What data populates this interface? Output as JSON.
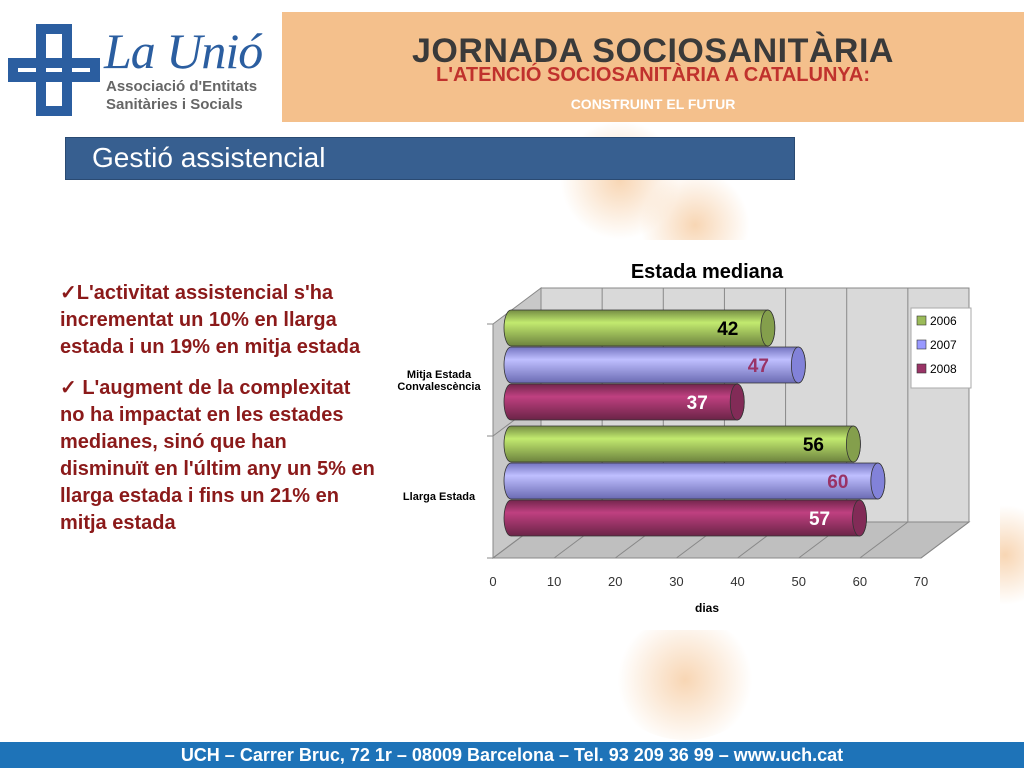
{
  "header": {
    "logo_name": "La Unió",
    "logo_tagline_1": "Associació d'Entitats",
    "logo_tagline_2": "Sanitàries i Socials",
    "title": "JORNADA SOCIOSANITÀRIA",
    "subtitle": "L'ATENCIÓ SOCIOSANITÀRIA A CATALUNYA:",
    "subtitle2": "CONSTRUINT EL FUTUR",
    "colors": {
      "header_bg": "#f4c08c",
      "subtitle": "#c0322d",
      "logo_blue": "#2b5ea0"
    }
  },
  "section": {
    "title": "Gestió assistencial"
  },
  "bullets": [
    "✓L'activitat assistencial s'ha incrementat un 10% en llarga estada i un 19% en mitja estada",
    "✓ L'augment de la complexitat no ha impactat en les estades medianes, sinó que han disminuït en l'últim any un 5% en llarga estada i fins un 21% en mitja estada"
  ],
  "chart_data": {
    "type": "bar",
    "orientation": "horizontal",
    "title": "Estada mediana",
    "xlabel": "dias",
    "ylabel": "",
    "xlim": [
      0,
      70
    ],
    "xticks": [
      0,
      10,
      20,
      30,
      40,
      50,
      60,
      70
    ],
    "categories": [
      "Mitja Estada Convalescència",
      "Llarga Estada"
    ],
    "category_label_lines": [
      [
        "Mitja Estada",
        "Convalescència"
      ],
      [
        "Llarga Estada"
      ]
    ],
    "series": [
      {
        "name": "2006",
        "values": [
          42,
          56
        ],
        "color": "#9bbb59",
        "label_color": "#000000"
      },
      {
        "name": "2007",
        "values": [
          47,
          60
        ],
        "color": "#9999ff",
        "label_color": "#993366"
      },
      {
        "name": "2008",
        "values": [
          37,
          57
        ],
        "color": "#993366",
        "label_color": "#ffffff"
      }
    ],
    "legend_position": "right",
    "grid": true
  },
  "footer": {
    "text": "UCH – Carrer Bruc, 72 1r – 08009 Barcelona – Tel. 93 209 36 99 – www.uch.cat"
  }
}
